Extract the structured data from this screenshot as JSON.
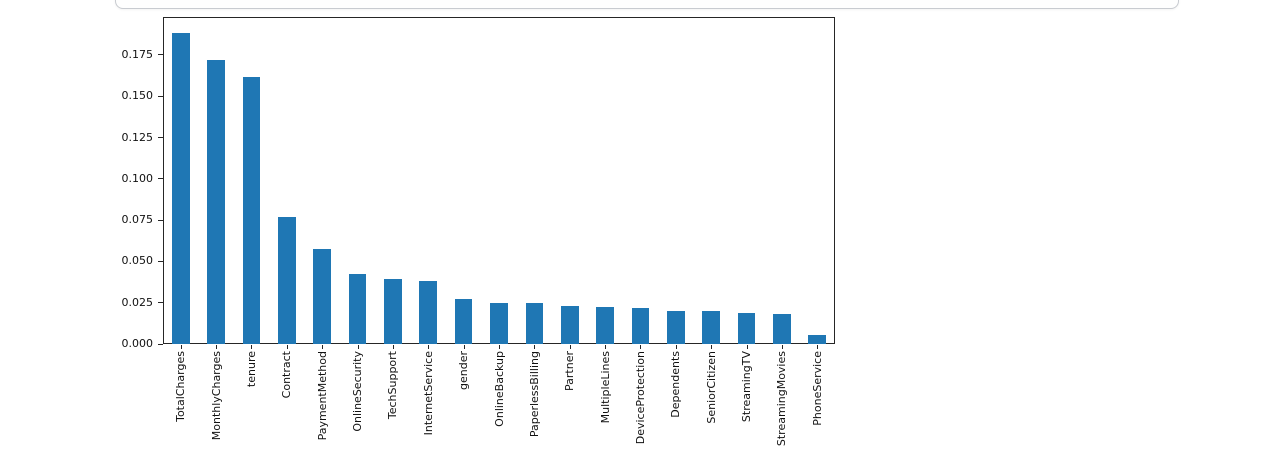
{
  "colors": {
    "bar": "#1f77b4",
    "axis": "#262626",
    "card_border": "#c8cbd0",
    "background": "#ffffff"
  },
  "chart_data": {
    "type": "bar",
    "title": "",
    "xlabel": "",
    "ylabel": "",
    "categories": [
      "TotalCharges",
      "MonthlyCharges",
      "tenure",
      "Contract",
      "PaymentMethod",
      "OnlineSecurity",
      "TechSupport",
      "InternetService",
      "gender",
      "OnlineBackup",
      "PaperlessBilling",
      "Partner",
      "MultipleLines",
      "DeviceProtection",
      "Dependents",
      "SeniorCitizen",
      "StreamingTV",
      "StreamingMovies",
      "PhoneService"
    ],
    "values": [
      0.1885,
      0.172,
      0.1615,
      0.077,
      0.0575,
      0.0424,
      0.0394,
      0.038,
      0.0274,
      0.025,
      0.0247,
      0.0231,
      0.0223,
      0.0217,
      0.0201,
      0.02,
      0.0185,
      0.0184,
      0.0055
    ],
    "ylim": [
      0,
      0.198
    ],
    "yticks": [
      0.0,
      0.025,
      0.05,
      0.075,
      0.1,
      0.125,
      0.15,
      0.175
    ],
    "ytick_labels": [
      "0.000",
      "0.025",
      "0.050",
      "0.075",
      "0.100",
      "0.125",
      "0.150",
      "0.175"
    ],
    "xtick_rotation": 90,
    "grid": false,
    "legend": null,
    "bar_color": "#1f77b4"
  }
}
